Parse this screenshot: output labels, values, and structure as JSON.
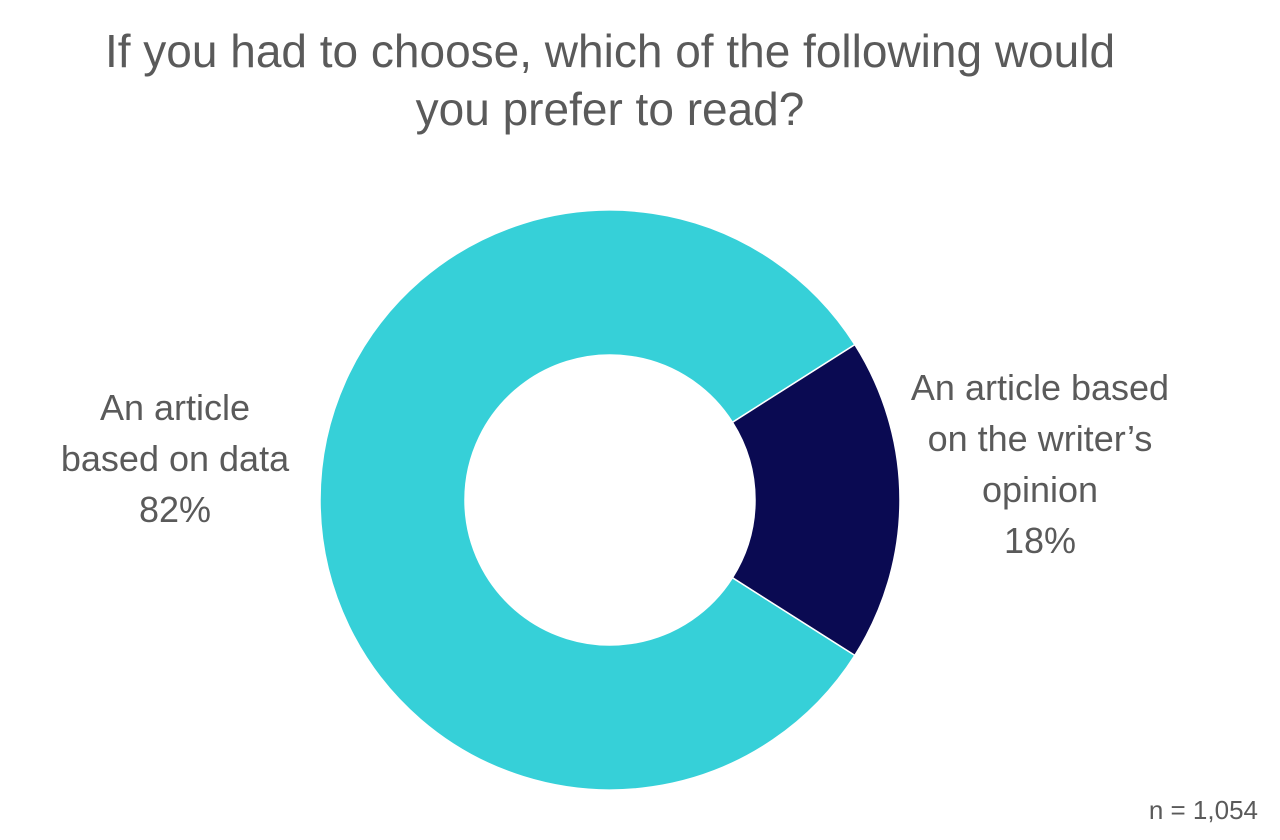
{
  "chart_data": {
    "type": "donut",
    "title": "If you had to choose, which of the following would you prefer to read?",
    "categories": [
      "An article based on data",
      "An article based on the writer’s opinion"
    ],
    "values": [
      82,
      18
    ],
    "value_labels": [
      "82%",
      "18%"
    ],
    "colors": [
      "#36d0d8",
      "#0a0a52"
    ],
    "note": "n = 1,054"
  }
}
